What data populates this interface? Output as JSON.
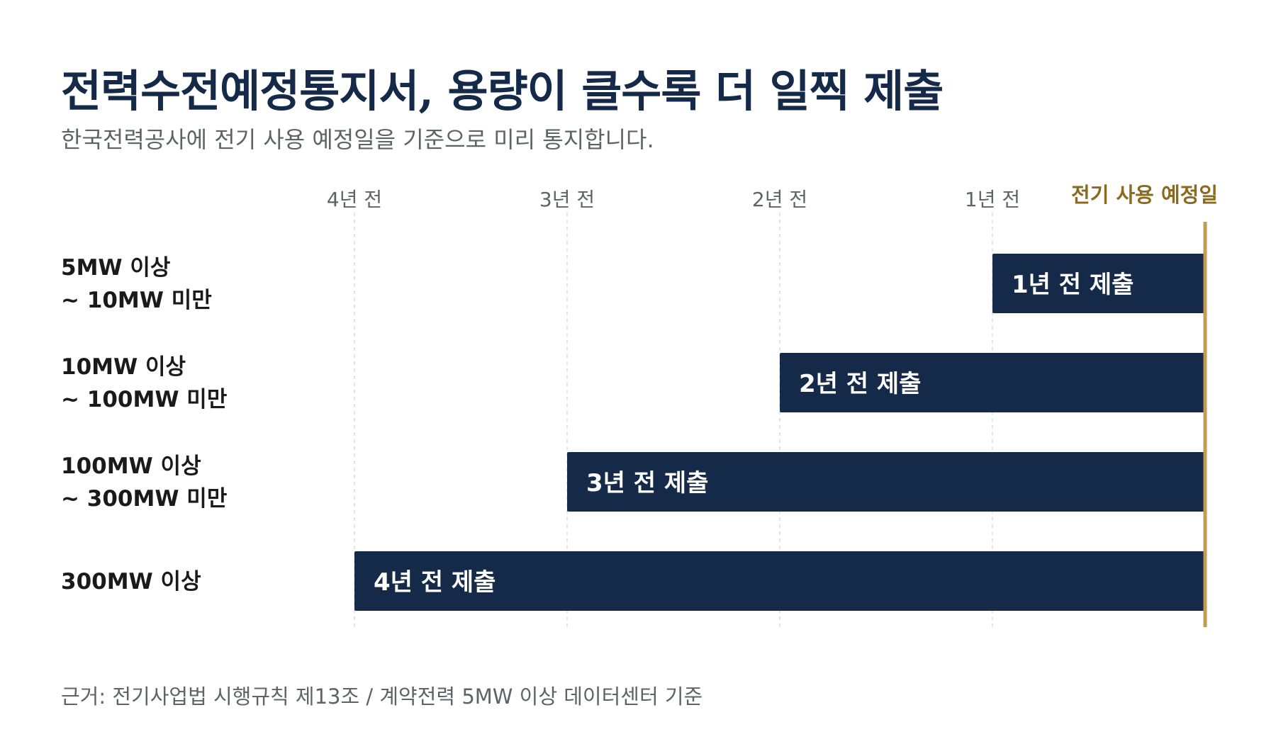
{
  "title": "전력수전예정통지서, 용량이 클수록 더 일찍 제출",
  "subtitle": "한국전력공사에 전기 사용 예정일을 기준으로 미리 통지합니다.",
  "footnote": "근거: 전기사업법 시행규칙 제13조 / 계약전력 5MW 이상 데이터센터 기준",
  "colors": {
    "bar": "#152949",
    "bar_label": "#ffffff",
    "marker": "#c49a55",
    "marker_label": "#8a6a1e",
    "title": "#152949",
    "category_label": "#1a1a1a",
    "tick_label": "#5f6368",
    "grid": "#dcdcdc"
  },
  "chart_data": {
    "type": "bar",
    "orientation": "horizontal",
    "x_unit": "years before scheduled electricity use date",
    "xlim": [
      4,
      0
    ],
    "x_ticks": [
      {
        "value": 4,
        "label": "4년 전"
      },
      {
        "value": 3,
        "label": "3년 전"
      },
      {
        "value": 2,
        "label": "2년 전"
      },
      {
        "value": 1,
        "label": "1년 전"
      }
    ],
    "reference_line": {
      "value": 0,
      "label": "전기 사용 예정일"
    },
    "grid": "vertical-dashed",
    "categories": [
      {
        "line1": "5MW 이상",
        "line2": "~ 10MW 미만"
      },
      {
        "line1": "10MW 이상",
        "line2": "~ 100MW 미만"
      },
      {
        "line1": "100MW 이상",
        "line2": "~ 300MW 미만"
      },
      {
        "line1": "300MW 이상",
        "line2": ""
      }
    ],
    "values": [
      1,
      2,
      3,
      4
    ],
    "bar_labels": [
      "1년 전 제출",
      "2년 전 제출",
      "3년 전 제출",
      "4년 전 제출"
    ]
  }
}
